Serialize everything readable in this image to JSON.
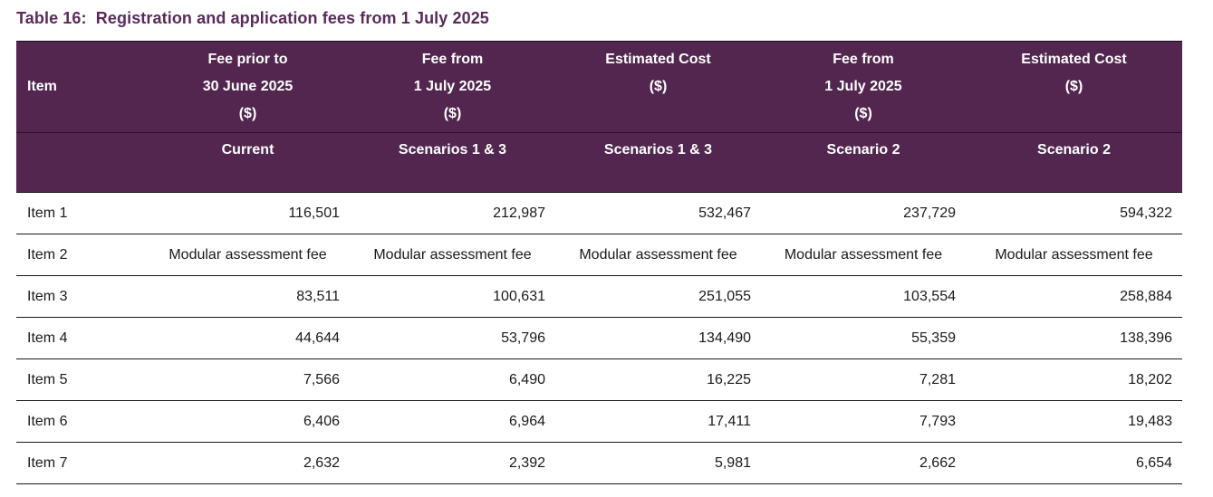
{
  "caption": "Table 16:  Registration and application fees from 1 July 2025",
  "header": {
    "item_label": "Item",
    "columns": [
      {
        "lines": [
          "Fee prior to",
          "30 June 2025",
          "($)"
        ],
        "sub": "Current"
      },
      {
        "lines": [
          "Fee from",
          "1 July 2025",
          "($)"
        ],
        "sub": "Scenarios 1 & 3"
      },
      {
        "lines": [
          "Estimated Cost",
          "($)"
        ],
        "sub": "Scenarios 1 & 3"
      },
      {
        "lines": [
          "Fee from",
          "1 July 2025",
          "($)"
        ],
        "sub": "Scenario 2"
      },
      {
        "lines": [
          "Estimated Cost",
          "($)"
        ],
        "sub": "Scenario 2"
      }
    ]
  },
  "rows": [
    {
      "item": "Item 1",
      "cells": [
        "116,501",
        "212,987",
        "532,467",
        "237,729",
        "594,322"
      ],
      "kind": "num"
    },
    {
      "item": "Item 2",
      "cells": [
        "Modular assessment fee",
        "Modular assessment fee",
        "Modular assessment fee",
        "Modular assessment fee",
        "Modular assessment fee"
      ],
      "kind": "text"
    },
    {
      "item": "Item 3",
      "cells": [
        "83,511",
        "100,631",
        "251,055",
        "103,554",
        "258,884"
      ],
      "kind": "num"
    },
    {
      "item": "Item 4",
      "cells": [
        "44,644",
        "53,796",
        "134,490",
        "55,359",
        "138,396"
      ],
      "kind": "num"
    },
    {
      "item": "Item 5",
      "cells": [
        "7,566",
        "6,490",
        "16,225",
        "7,281",
        "18,202"
      ],
      "kind": "num"
    },
    {
      "item": "Item 6",
      "cells": [
        "6,406",
        "6,964",
        "17,411",
        "7,793",
        "19,483"
      ],
      "kind": "num"
    },
    {
      "item": "Item 7",
      "cells": [
        "2,632",
        "2,392",
        "5,981",
        "2,662",
        "6,654"
      ],
      "kind": "num"
    }
  ],
  "colors": {
    "header_bg": "#52264e",
    "caption": "#5a2a5c"
  }
}
